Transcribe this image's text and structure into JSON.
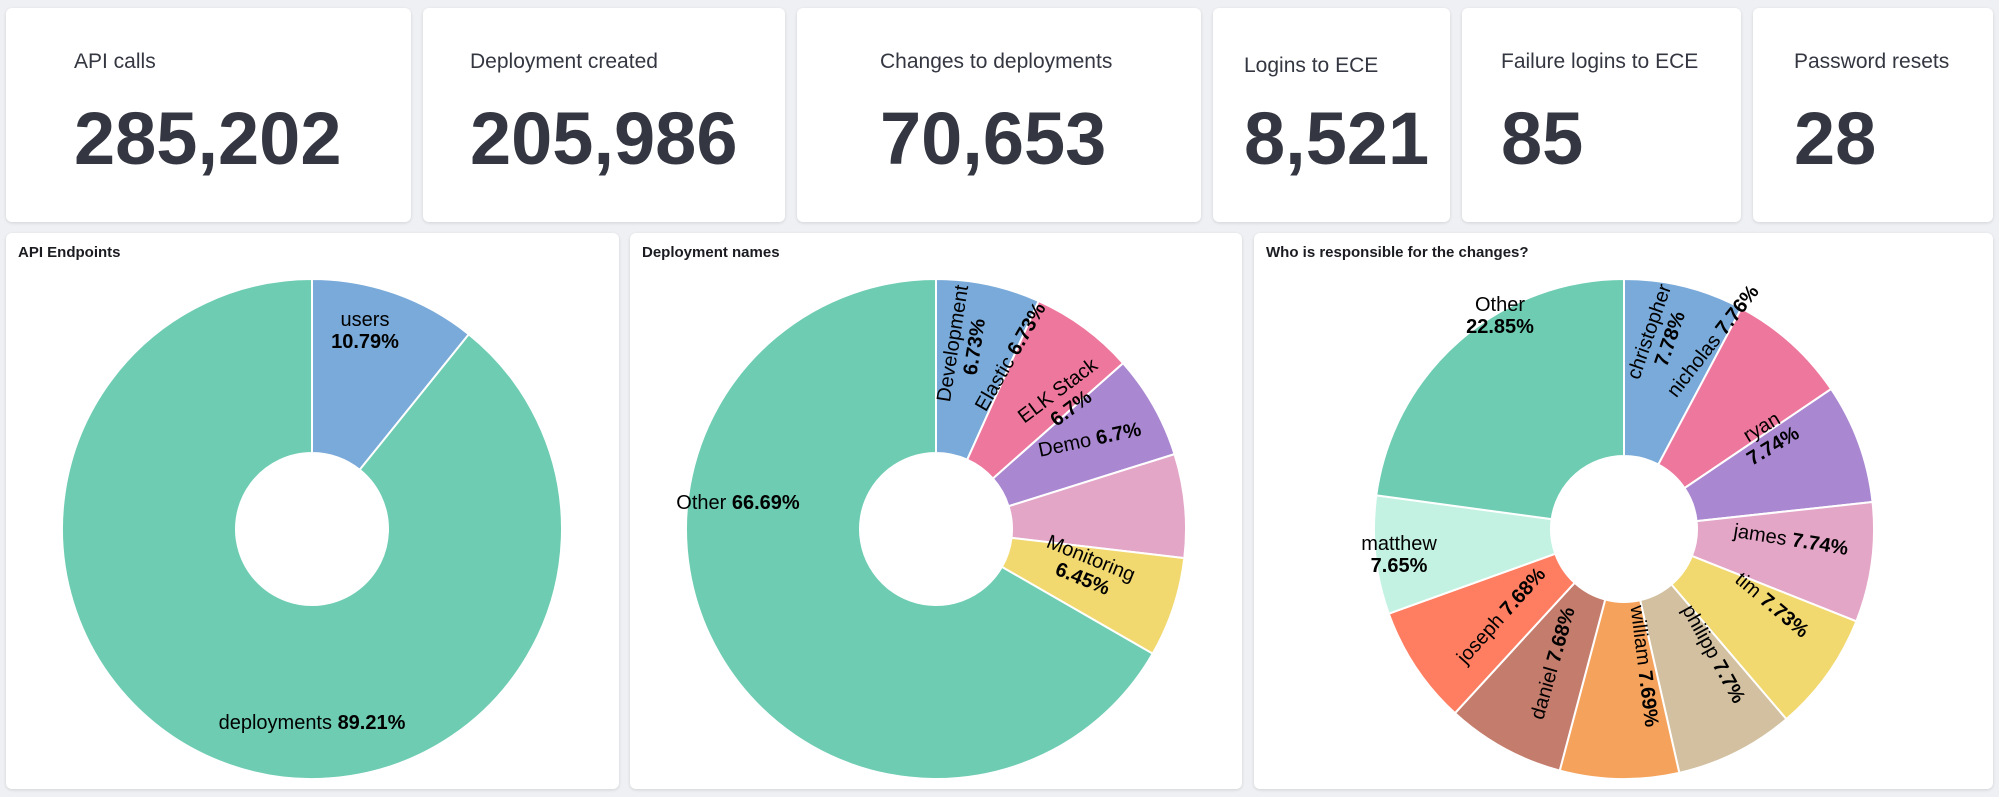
{
  "metrics": [
    {
      "title": "API calls",
      "value": "285,202"
    },
    {
      "title": "Deployment created",
      "value": "205,986"
    },
    {
      "title": "Changes to deployments",
      "value": "70,653"
    },
    {
      "title": "Logins to ECE",
      "value": "8,521"
    },
    {
      "title": "Failure logins to ECE",
      "value": "85"
    },
    {
      "title": "Password resets",
      "value": "28"
    }
  ],
  "chart_data": [
    {
      "type": "pie",
      "title": "API Endpoints",
      "slices": [
        {
          "label": "users",
          "percent": "10.79%",
          "value": 10.79,
          "color": "#79aad9"
        },
        {
          "label": "deployments",
          "percent": "89.21%",
          "value": 89.21,
          "color": "#6dccb1"
        }
      ]
    },
    {
      "type": "pie",
      "title": "Deployment names",
      "slices": [
        {
          "label": "Development",
          "percent": "6.73%",
          "value": 6.73,
          "color": "#79aad9"
        },
        {
          "label": "Elastic",
          "percent": "6.73%",
          "value": 6.73,
          "color": "#ee789d"
        },
        {
          "label": "ELK Stack",
          "percent": "6.7%",
          "value": 6.7,
          "color": "#a987d1"
        },
        {
          "label": "Demo",
          "percent": "6.7%",
          "value": 6.7,
          "color": "#e4a6c7"
        },
        {
          "label": "Monitoring",
          "percent": "6.45%",
          "value": 6.45,
          "color": "#f1d86f"
        },
        {
          "label": "Other",
          "percent": "66.69%",
          "value": 66.69,
          "color": "#6dccb1"
        }
      ]
    },
    {
      "type": "pie",
      "title": "Who is responsible for the changes?",
      "slices": [
        {
          "label": "christopher",
          "percent": "7.78%",
          "value": 7.78,
          "color": "#79aad9"
        },
        {
          "label": "nicholas",
          "percent": "7.76%",
          "value": 7.76,
          "color": "#ee789d"
        },
        {
          "label": "ryan",
          "percent": "7.74%",
          "value": 7.74,
          "color": "#a987d1"
        },
        {
          "label": "james",
          "percent": "7.74%",
          "value": 7.74,
          "color": "#e4a6c7"
        },
        {
          "label": "tim",
          "percent": "7.73%",
          "value": 7.73,
          "color": "#f1d86f"
        },
        {
          "label": "philipp",
          "percent": "7.7%",
          "value": 7.7,
          "color": "#d2c0a0"
        },
        {
          "label": "william",
          "percent": "7.69%",
          "value": 7.69,
          "color": "#f5a35c"
        },
        {
          "label": "daniel",
          "percent": "7.68%",
          "value": 7.68,
          "color": "#c47c6c"
        },
        {
          "label": "joseph",
          "percent": "7.68%",
          "value": 7.68,
          "color": "#ff7e62"
        },
        {
          "label": "matthew",
          "percent": "7.65%",
          "value": 7.65,
          "color": "#c3f2e3"
        },
        {
          "label": "Other",
          "percent": "22.85%",
          "value": 22.85,
          "color": "#6dccb1"
        }
      ]
    }
  ]
}
